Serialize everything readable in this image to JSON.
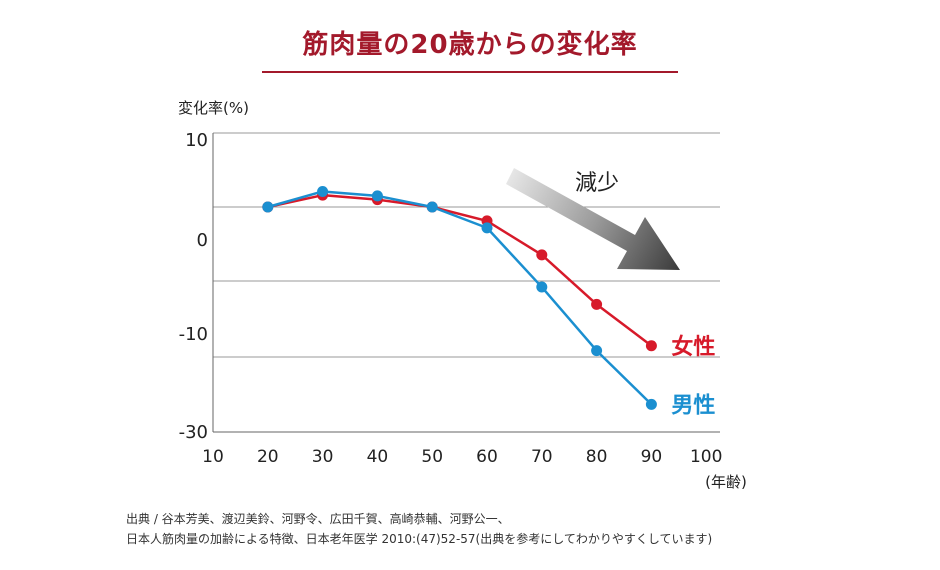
{
  "title": "筋肉量の20歳からの変化率",
  "chart_data": {
    "type": "line",
    "ylabel": "変化率(%)",
    "xlabel": "(年齢)",
    "x_ticks": [
      10,
      20,
      30,
      40,
      50,
      60,
      70,
      80,
      90,
      100
    ],
    "y_ticks": [
      "10",
      "0",
      "-10",
      "-30"
    ],
    "x": [
      20,
      30,
      40,
      50,
      60,
      70,
      80,
      90
    ],
    "series": [
      {
        "name": "女性",
        "color": "#d71a2a",
        "values": [
          0.0,
          1.6,
          1.0,
          0.0,
          -1.6,
          -5.5,
          -11.5,
          -17.5
        ]
      },
      {
        "name": "男性",
        "color": "#1b8fd0",
        "values": [
          0.0,
          2.1,
          1.5,
          0.0,
          -2.4,
          -9.2,
          -18.2,
          -26.0
        ]
      }
    ],
    "annotation": "減少",
    "grid": true
  },
  "source": {
    "line1": "出典 / 谷本芳美、渡辺美鈴、河野令、広田千賀、高崎恭輔、河野公一、",
    "line2": "日本人筋肉量の加齢による特徴、日本老年医学 2010:(47)52-57(出典を参考にしてわかりやすくしています)"
  }
}
